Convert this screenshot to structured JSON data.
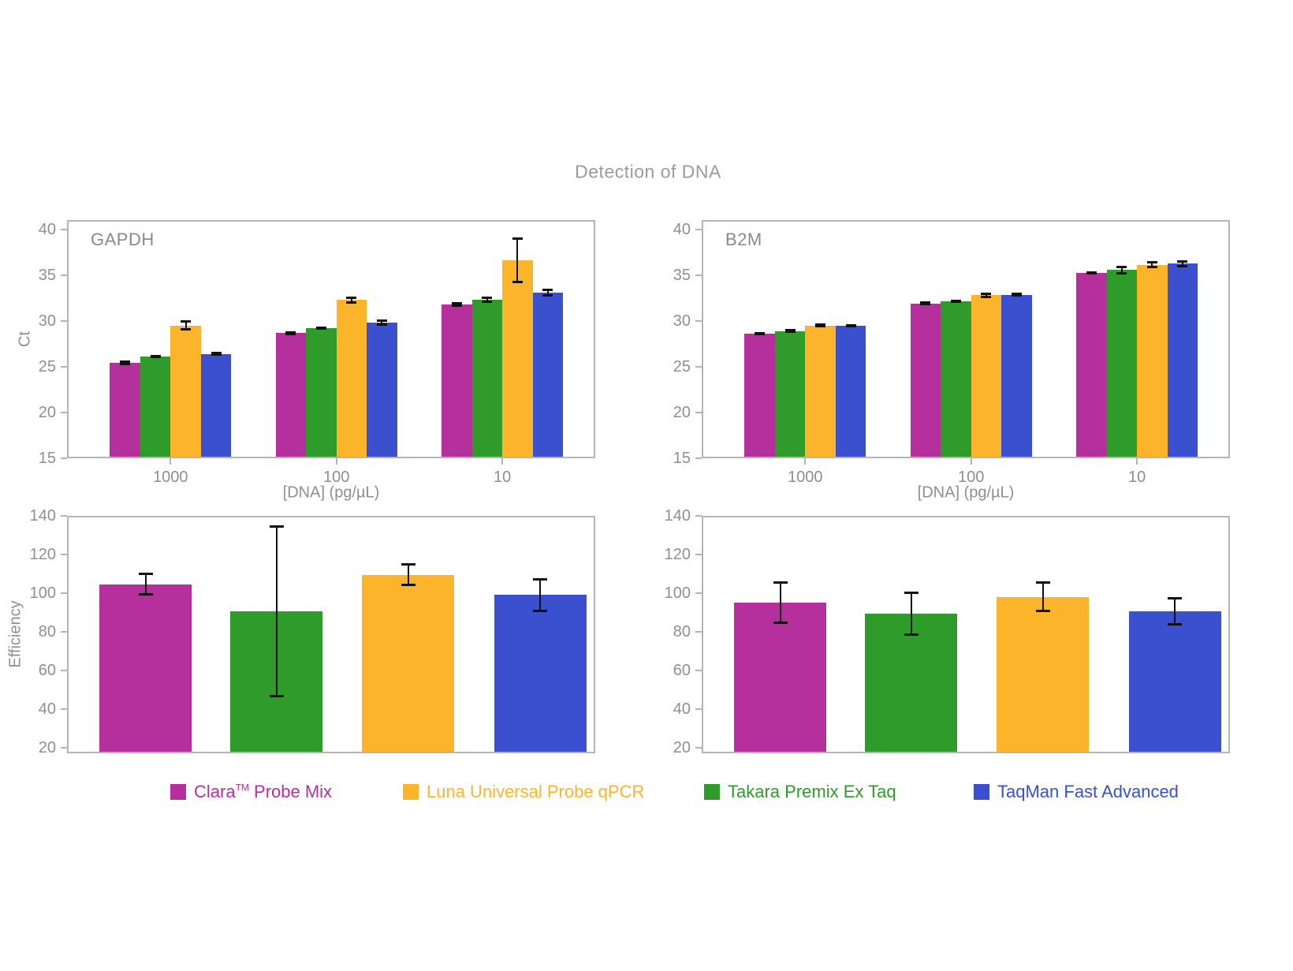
{
  "title": "Detection of DNA",
  "axes": {
    "ct_label": "Ct",
    "efficiency_label": "Efficiency",
    "dna_label": "[DNA] (pg/µL)"
  },
  "colors": {
    "clara": "#B5309C",
    "takara": "#2E9B2B",
    "luna": "#FCB52B",
    "taqman": "#3A50CE",
    "axis": "#B5B5B5",
    "tick_text": "#8F8F8F",
    "title_text": "#9B9B9B",
    "error_bar": "#111111"
  },
  "legend": {
    "items": [
      {
        "id": "clara",
        "label": "Clara",
        "sup": "TM",
        "label_rest": " Probe Mix",
        "color": "#B5309C"
      },
      {
        "id": "luna",
        "label": "Luna Universal Probe qPCR",
        "sup": "",
        "label_rest": "",
        "color": "#FCB52B"
      },
      {
        "id": "takara",
        "label": "Takara Premix Ex Taq",
        "sup": "",
        "label_rest": "",
        "color": "#2E9B2B"
      },
      {
        "id": "taqman",
        "label": "TaqMan Fast Advanced",
        "sup": "",
        "label_rest": "",
        "color": "#3A50CE"
      }
    ]
  },
  "chart_data": [
    {
      "id": "gapdh-ct",
      "type": "bar",
      "panel_label": "GAPDH",
      "xlabel": "[DNA] (pg/µL)",
      "ylabel": "Ct",
      "categories": [
        "1000",
        "100",
        "10"
      ],
      "ylim": [
        15,
        40
      ],
      "yticks": [
        15,
        20,
        25,
        30,
        35,
        40
      ],
      "grid": false,
      "legend_position": "below-figure",
      "series": [
        {
          "name": "Clara Probe Mix",
          "color_key": "clara",
          "values": [
            25.4,
            28.65,
            31.8
          ],
          "errors": [
            0.15,
            0.1,
            0.2
          ]
        },
        {
          "name": "Takara Premix Ex Taq",
          "color_key": "takara",
          "values": [
            26.1,
            29.2,
            32.3
          ],
          "errors": [
            0.1,
            0.1,
            0.25
          ]
        },
        {
          "name": "Luna Universal Probe qPCR",
          "color_key": "luna",
          "values": [
            29.5,
            32.3,
            36.6
          ],
          "errors": [
            0.5,
            0.3,
            2.4
          ]
        },
        {
          "name": "TaqMan Fast Advanced",
          "color_key": "taqman",
          "values": [
            26.4,
            29.8,
            33.1
          ],
          "errors": [
            0.15,
            0.25,
            0.35
          ]
        }
      ]
    },
    {
      "id": "b2m-ct",
      "type": "bar",
      "panel_label": "B2M",
      "xlabel": "[DNA] (pg/µL)",
      "ylabel": "",
      "categories": [
        "1000",
        "100",
        "10"
      ],
      "ylim": [
        15,
        40
      ],
      "yticks": [
        15,
        20,
        25,
        30,
        35,
        40
      ],
      "grid": false,
      "legend_position": "below-figure",
      "series": [
        {
          "name": "Clara Probe Mix",
          "color_key": "clara",
          "values": [
            28.6,
            31.9,
            35.25
          ],
          "errors": [
            0.1,
            0.15,
            0.1
          ]
        },
        {
          "name": "Takara Premix Ex Taq",
          "color_key": "takara",
          "values": [
            28.9,
            32.15,
            35.55
          ],
          "errors": [
            0.15,
            0.1,
            0.4
          ]
        },
        {
          "name": "Luna Universal Probe qPCR",
          "color_key": "luna",
          "values": [
            29.5,
            32.8,
            36.1
          ],
          "errors": [
            0.1,
            0.2,
            0.3
          ]
        },
        {
          "name": "TaqMan Fast Advanced",
          "color_key": "taqman",
          "values": [
            29.45,
            32.85,
            36.25
          ],
          "errors": [
            0.1,
            0.15,
            0.3
          ]
        }
      ]
    },
    {
      "id": "gapdh-efficiency",
      "type": "bar",
      "panel_label": "",
      "xlabel": "",
      "ylabel": "Efficiency",
      "categories": [
        ""
      ],
      "ylim": [
        20,
        140
      ],
      "yticks": [
        20,
        40,
        60,
        80,
        100,
        120,
        140
      ],
      "grid": false,
      "series": [
        {
          "name": "Clara Probe Mix",
          "color_key": "clara",
          "values": [
            104.5
          ],
          "errors": [
            5.5
          ]
        },
        {
          "name": "Takara Premix Ex Taq",
          "color_key": "takara",
          "values": [
            90.5
          ],
          "errors": [
            44
          ]
        },
        {
          "name": "Luna Universal Probe qPCR",
          "color_key": "luna",
          "values": [
            109.5
          ],
          "errors": [
            5.5
          ]
        },
        {
          "name": "TaqMan Fast Advanced",
          "color_key": "taqman",
          "values": [
            99
          ],
          "errors": [
            8.5
          ]
        }
      ]
    },
    {
      "id": "b2m-efficiency",
      "type": "bar",
      "panel_label": "",
      "xlabel": "",
      "ylabel": "",
      "categories": [
        ""
      ],
      "ylim": [
        20,
        140
      ],
      "yticks": [
        20,
        40,
        60,
        80,
        100,
        120,
        140
      ],
      "grid": false,
      "series": [
        {
          "name": "Clara Probe Mix",
          "color_key": "clara",
          "values": [
            95
          ],
          "errors": [
            10.5
          ]
        },
        {
          "name": "Takara Premix Ex Taq",
          "color_key": "takara",
          "values": [
            89.5
          ],
          "errors": [
            11
          ]
        },
        {
          "name": "Luna Universal Probe qPCR",
          "color_key": "luna",
          "values": [
            98
          ],
          "errors": [
            7.5
          ]
        },
        {
          "name": "TaqMan Fast Advanced",
          "color_key": "taqman",
          "values": [
            90.5
          ],
          "errors": [
            7
          ]
        }
      ]
    }
  ]
}
